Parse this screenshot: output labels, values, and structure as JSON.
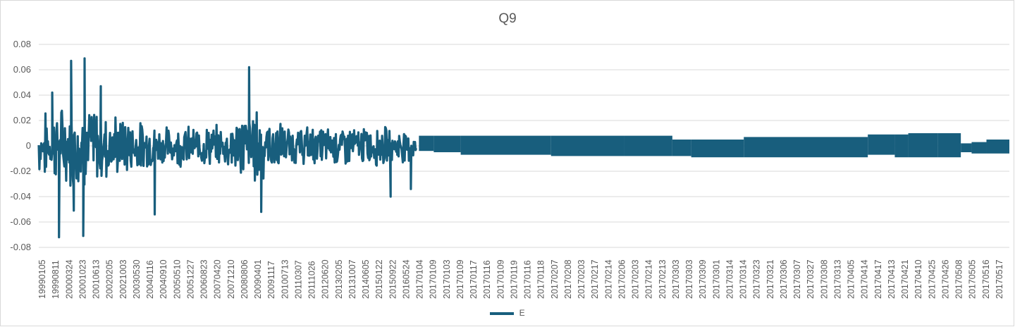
{
  "chart_data": {
    "type": "line",
    "title": "Q9",
    "xlabel": "",
    "ylabel": "",
    "ylim": [
      -0.08,
      0.08
    ],
    "yticks": [
      "0.08",
      "0.06",
      "0.04",
      "0.02",
      "0",
      "-0.02",
      "-0.04",
      "-0.06",
      "-0.08"
    ],
    "ytick_values": [
      0.08,
      0.06,
      0.04,
      0.02,
      0,
      -0.02,
      -0.04,
      -0.06,
      -0.08
    ],
    "grid": true,
    "legend_position": "bottom",
    "x_tick_labels": [
      "19990105",
      "19990811",
      "20000324",
      "20001023",
      "20010613",
      "20020205",
      "20021003",
      "20030530",
      "20040116",
      "20040910",
      "20050510",
      "20051227",
      "20060823",
      "20070420",
      "20071210",
      "20080806",
      "20090401",
      "20091117",
      "20100713",
      "20110307",
      "20111026",
      "20120620",
      "20130205",
      "20131007",
      "20140605",
      "20150122",
      "20150922",
      "20160524",
      "20170104",
      "20170109",
      "20170103",
      "20170109",
      "20170117",
      "20170116",
      "20170109",
      "20170119",
      "20170116",
      "20170118",
      "20170207",
      "20170208",
      "20170203",
      "20170217",
      "20170214",
      "20170206",
      "20170203",
      "20170214",
      "20170213",
      "20170303",
      "20170303",
      "20170309",
      "20170301",
      "20170314",
      "20170314",
      "20170323",
      "20170321",
      "20170306",
      "20170307",
      "20170327",
      "20170308",
      "20170313",
      "20170405",
      "20170414",
      "20170417",
      "20170413",
      "20170421",
      "20170410",
      "20170425",
      "20170426",
      "20170508",
      "20170505",
      "20170516",
      "20170517"
    ],
    "series": [
      {
        "name": "E",
        "color": "#185e7d",
        "segments": [
          {
            "x": [
              0,
              28
            ],
            "y": [
              -0.03,
              0.03
            ],
            "note_values": "dense oscillation"
          }
        ],
        "peaks": [
          {
            "x": 1,
            "y": 0.042
          },
          {
            "x": 1.5,
            "y": -0.072
          },
          {
            "x": 2.4,
            "y": 0.067
          },
          {
            "x": 2.6,
            "y": -0.051
          },
          {
            "x": 3.4,
            "y": 0.069
          },
          {
            "x": 3.3,
            "y": -0.071
          },
          {
            "x": 4.6,
            "y": 0.047
          },
          {
            "x": 8.6,
            "y": -0.054
          },
          {
            "x": 15.6,
            "y": 0.062
          },
          {
            "x": 16.5,
            "y": -0.052
          },
          {
            "x": 26.1,
            "y": -0.04
          },
          {
            "x": 27.6,
            "y": -0.034
          }
        ],
        "bands": [
          {
            "x0": 28.2,
            "x1": 29.3,
            "hi": 0.008,
            "lo": -0.004
          },
          {
            "x0": 29.3,
            "x1": 31.3,
            "hi": 0.008,
            "lo": -0.005
          },
          {
            "x0": 31.3,
            "x1": 38.0,
            "hi": 0.008,
            "lo": -0.007
          },
          {
            "x0": 38.0,
            "x1": 43.4,
            "hi": 0.008,
            "lo": -0.008
          },
          {
            "x0": 43.4,
            "x1": 47.0,
            "hi": 0.008,
            "lo": -0.008
          },
          {
            "x0": 47.0,
            "x1": 48.4,
            "hi": 0.005,
            "lo": -0.008
          },
          {
            "x0": 48.4,
            "x1": 52.3,
            "hi": 0.005,
            "lo": -0.009
          },
          {
            "x0": 52.3,
            "x1": 61.5,
            "hi": 0.007,
            "lo": -0.009
          },
          {
            "x0": 61.5,
            "x1": 63.5,
            "hi": 0.009,
            "lo": -0.007
          },
          {
            "x0": 63.5,
            "x1": 64.5,
            "hi": 0.009,
            "lo": -0.009
          },
          {
            "x0": 64.5,
            "x1": 66.7,
            "hi": 0.01,
            "lo": -0.009
          },
          {
            "x0": 66.7,
            "x1": 68.4,
            "hi": 0.01,
            "lo": -0.009
          },
          {
            "x0": 68.4,
            "x1": 69.2,
            "hi": 0.002,
            "lo": -0.005
          },
          {
            "x0": 69.2,
            "x1": 70.3,
            "hi": 0.003,
            "lo": -0.006
          },
          {
            "x0": 70.3,
            "x1": 72.0,
            "hi": 0.005,
            "lo": -0.006
          }
        ]
      }
    ]
  }
}
